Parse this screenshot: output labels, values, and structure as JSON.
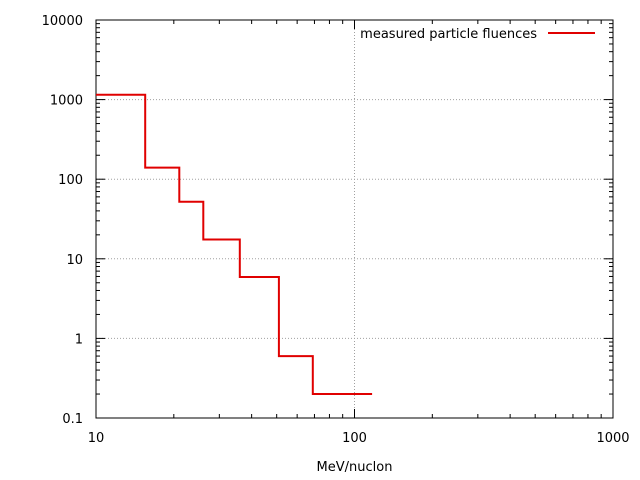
{
  "chart_data": {
    "type": "line",
    "xlabel": "MeV/nuclon",
    "ylabel": "",
    "x_scale": "log",
    "y_scale": "log",
    "xlim": [
      10,
      1000
    ],
    "ylim": [
      0.1,
      10000
    ],
    "x_ticks": [
      10,
      100,
      1000
    ],
    "x_tick_labels": [
      "10",
      "100",
      "1000"
    ],
    "y_ticks": [
      0.1,
      1,
      10,
      100,
      1000,
      10000
    ],
    "y_tick_labels": [
      "0.1",
      "1",
      "10",
      "100",
      "1000",
      "10000"
    ],
    "grid": true,
    "legend_position": "top-right",
    "series": [
      {
        "name": "measured particle fluences",
        "style": "steps",
        "color": "#e00000",
        "bins": [
          {
            "x0": 10,
            "x1": 15.5,
            "y": 1150
          },
          {
            "x0": 15.5,
            "x1": 21,
            "y": 140
          },
          {
            "x0": 21,
            "x1": 26,
            "y": 52
          },
          {
            "x0": 26,
            "x1": 36,
            "y": 17.5
          },
          {
            "x0": 36,
            "x1": 51,
            "y": 5.9
          },
          {
            "x0": 51,
            "x1": 69,
            "y": 0.6
          },
          {
            "x0": 69,
            "x1": 117,
            "y": 0.2
          }
        ]
      }
    ]
  }
}
